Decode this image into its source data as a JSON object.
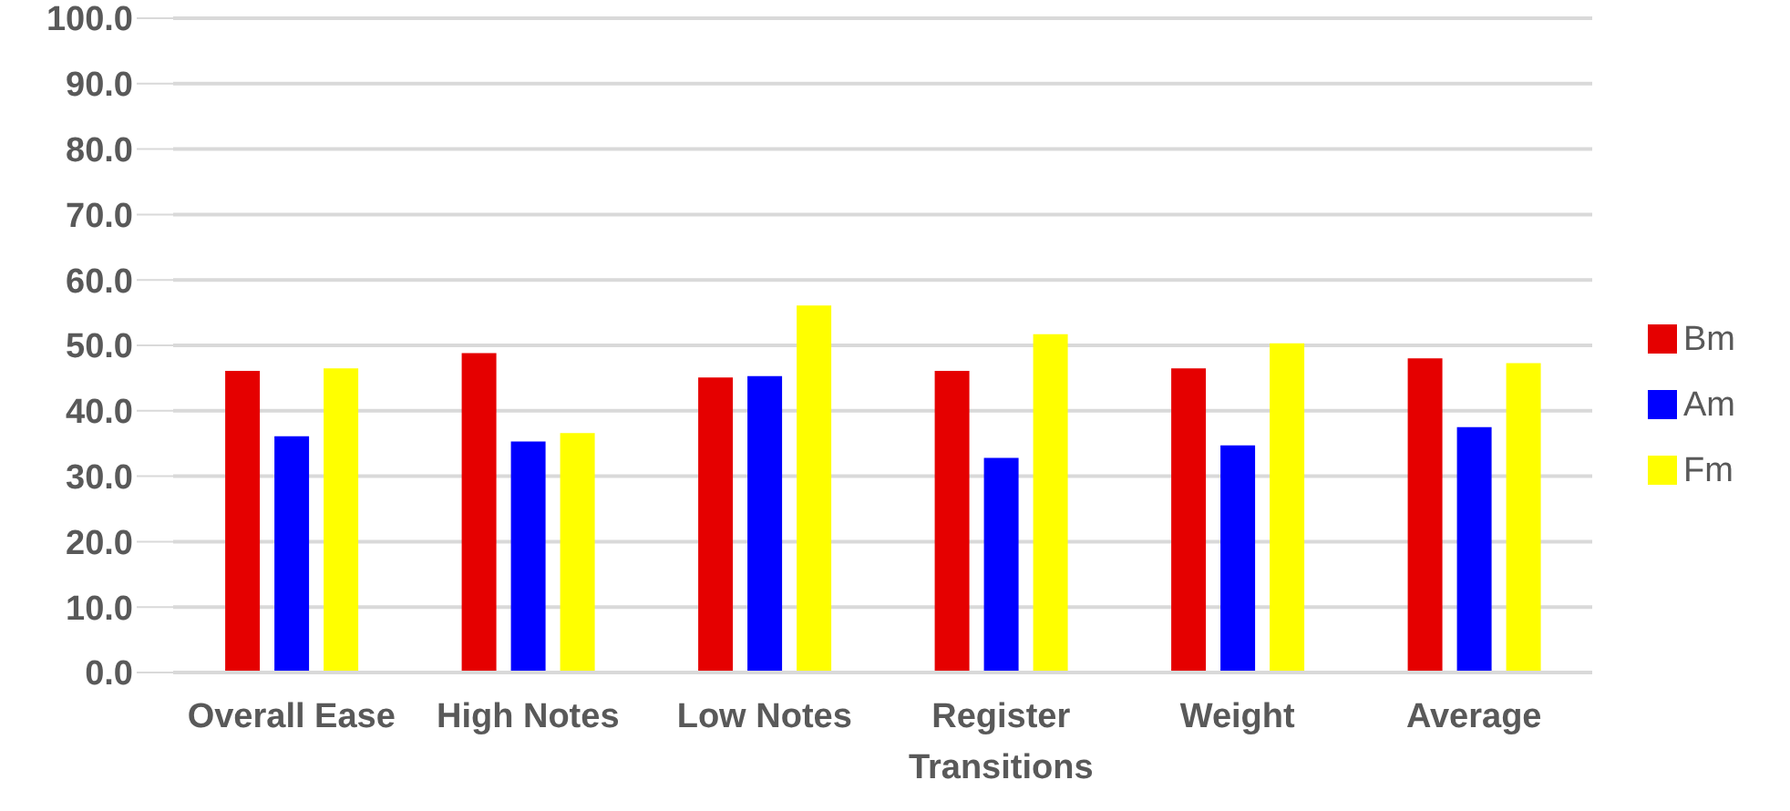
{
  "chart_data": {
    "type": "bar",
    "categories": [
      "Overall Ease",
      "High Notes",
      "Low Notes",
      "Register Transitions",
      "Weight",
      "Average"
    ],
    "series": [
      {
        "name": "Bm",
        "color": "#e50000",
        "values": [
          46.1,
          48.8,
          45.1,
          46.1,
          46.5,
          48.0
        ]
      },
      {
        "name": "Am",
        "color": "#0000ff",
        "values": [
          36.1,
          35.3,
          45.3,
          32.8,
          34.7,
          37.5
        ]
      },
      {
        "name": "Fm",
        "color": "#ffff00",
        "values": [
          46.5,
          36.6,
          56.1,
          51.7,
          50.3,
          47.3
        ]
      }
    ],
    "ylim": [
      0,
      100
    ],
    "yticks": [
      {
        "value": 0,
        "label": "0.0"
      },
      {
        "value": 10,
        "label": "10.0"
      },
      {
        "value": 20,
        "label": "20.0"
      },
      {
        "value": 30,
        "label": "30.0"
      },
      {
        "value": 40,
        "label": "40.0"
      },
      {
        "value": 50,
        "label": "50.0"
      },
      {
        "value": 60,
        "label": "60.0"
      },
      {
        "value": 70,
        "label": "70.0"
      },
      {
        "value": 80,
        "label": "80.0"
      },
      {
        "value": 90,
        "label": "90.0"
      },
      {
        "value": 100,
        "label": "100.0"
      }
    ],
    "grid": "y",
    "legend": "right"
  }
}
